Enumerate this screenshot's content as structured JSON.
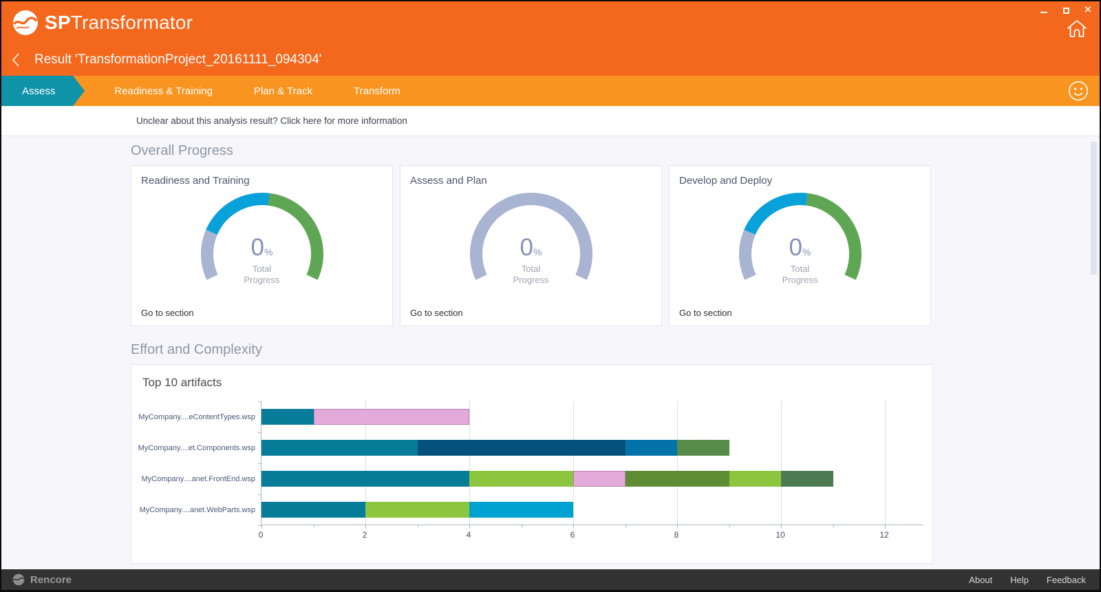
{
  "window": {
    "brand_bold": "SP",
    "brand_light": "Transformator"
  },
  "header": {
    "result_title": "Result 'TransformationProject_20161111_094304'"
  },
  "tabs": [
    {
      "label": "Assess",
      "active": true
    },
    {
      "label": "Readiness & Training",
      "active": false
    },
    {
      "label": "Plan & Track",
      "active": false
    },
    {
      "label": "Transform",
      "active": false
    }
  ],
  "info_bar": {
    "text": "Unclear about this analysis result? Click here for more information"
  },
  "sections": {
    "overall": "Overall Progress",
    "effort": "Effort and Complexity"
  },
  "progress_cards": [
    {
      "title": "Readiness and Training",
      "value": "0",
      "unit": "%",
      "sub_line1": "Total",
      "sub_line2": "Progress",
      "link": "Go to section"
    },
    {
      "title": "Assess and Plan",
      "value": "0",
      "unit": "%",
      "sub_line1": "Total",
      "sub_line2": "Progress",
      "link": "Go to section"
    },
    {
      "title": "Develop and Deploy",
      "value": "0",
      "unit": "%",
      "sub_line1": "Total",
      "sub_line2": "Progress",
      "link": "Go to section"
    }
  ],
  "chart_data": [
    {
      "type": "gauge",
      "title": "Readiness and Training",
      "value_pct": 0,
      "label": "Total Progress",
      "arc_segments": [
        {
          "color": "#A9B4D3",
          "pct": 21
        },
        {
          "color": "#09A1DA",
          "pct": 32
        },
        {
          "color": "#5FA654",
          "pct": 47
        }
      ]
    },
    {
      "type": "gauge",
      "title": "Assess and Plan",
      "value_pct": 0,
      "label": "Total Progress",
      "arc_segments": [
        {
          "color": "#A9B4D3",
          "pct": 100
        }
      ]
    },
    {
      "type": "gauge",
      "title": "Develop and Deploy",
      "value_pct": 0,
      "label": "Total Progress",
      "arc_segments": [
        {
          "color": "#A9B4D3",
          "pct": 21
        },
        {
          "color": "#09A1DA",
          "pct": 32
        },
        {
          "color": "#5FA654",
          "pct": 47
        }
      ]
    },
    {
      "type": "bar",
      "orientation": "horizontal",
      "stacked": true,
      "grid": true,
      "title": "Top 10 artifacts",
      "categories": [
        "MyCompany....eContentTypes.wsp",
        "MyCompany....et.Components.wsp",
        "MyCompany....anet.FrontEnd.wsp",
        "MyCompany....anet.WebParts.wsp"
      ],
      "xlim": [
        0,
        12
      ],
      "xticks": [
        0,
        2,
        4,
        6,
        8,
        10,
        12
      ],
      "rows": [
        {
          "label": "MyCompany....eContentTypes.wsp",
          "total": 4,
          "segments": [
            {
              "value": 1,
              "color": "#077C99"
            },
            {
              "value": 3,
              "color": "#E2ABD9",
              "border": "#BA7BB5"
            }
          ]
        },
        {
          "label": "MyCompany....et.Components.wsp",
          "total": 9,
          "segments": [
            {
              "value": 3,
              "color": "#077C99"
            },
            {
              "value": 4,
              "color": "#04507D"
            },
            {
              "value": 1,
              "color": "#0272A8"
            },
            {
              "value": 1,
              "color": "#578B49"
            }
          ]
        },
        {
          "label": "MyCompany....anet.FrontEnd.wsp",
          "total": 11,
          "segments": [
            {
              "value": 4,
              "color": "#077C99"
            },
            {
              "value": 2,
              "color": "#8CC63F"
            },
            {
              "value": 1,
              "color": "#E2ABD9",
              "border": "#BA7BB5"
            },
            {
              "value": 2,
              "color": "#5E8C33"
            },
            {
              "value": 1,
              "color": "#8CC63F"
            },
            {
              "value": 1,
              "color": "#4D7B51"
            }
          ]
        },
        {
          "label": "MyCompany....anet.WebParts.wsp",
          "total": 6,
          "segments": [
            {
              "value": 2,
              "color": "#077C99"
            },
            {
              "value": 2,
              "color": "#8CC63F"
            },
            {
              "value": 2,
              "color": "#00A2D1"
            }
          ]
        }
      ]
    }
  ],
  "footer": {
    "brand": "Rencore",
    "links": [
      "About",
      "Help",
      "Feedback"
    ]
  },
  "colors": {
    "header_orange": "#F4681D",
    "tabbar_orange": "#F8941F",
    "active_tab_teal": "#0E93A8",
    "footer_dark": "#323232",
    "content_bg": "#F7F7FB"
  }
}
